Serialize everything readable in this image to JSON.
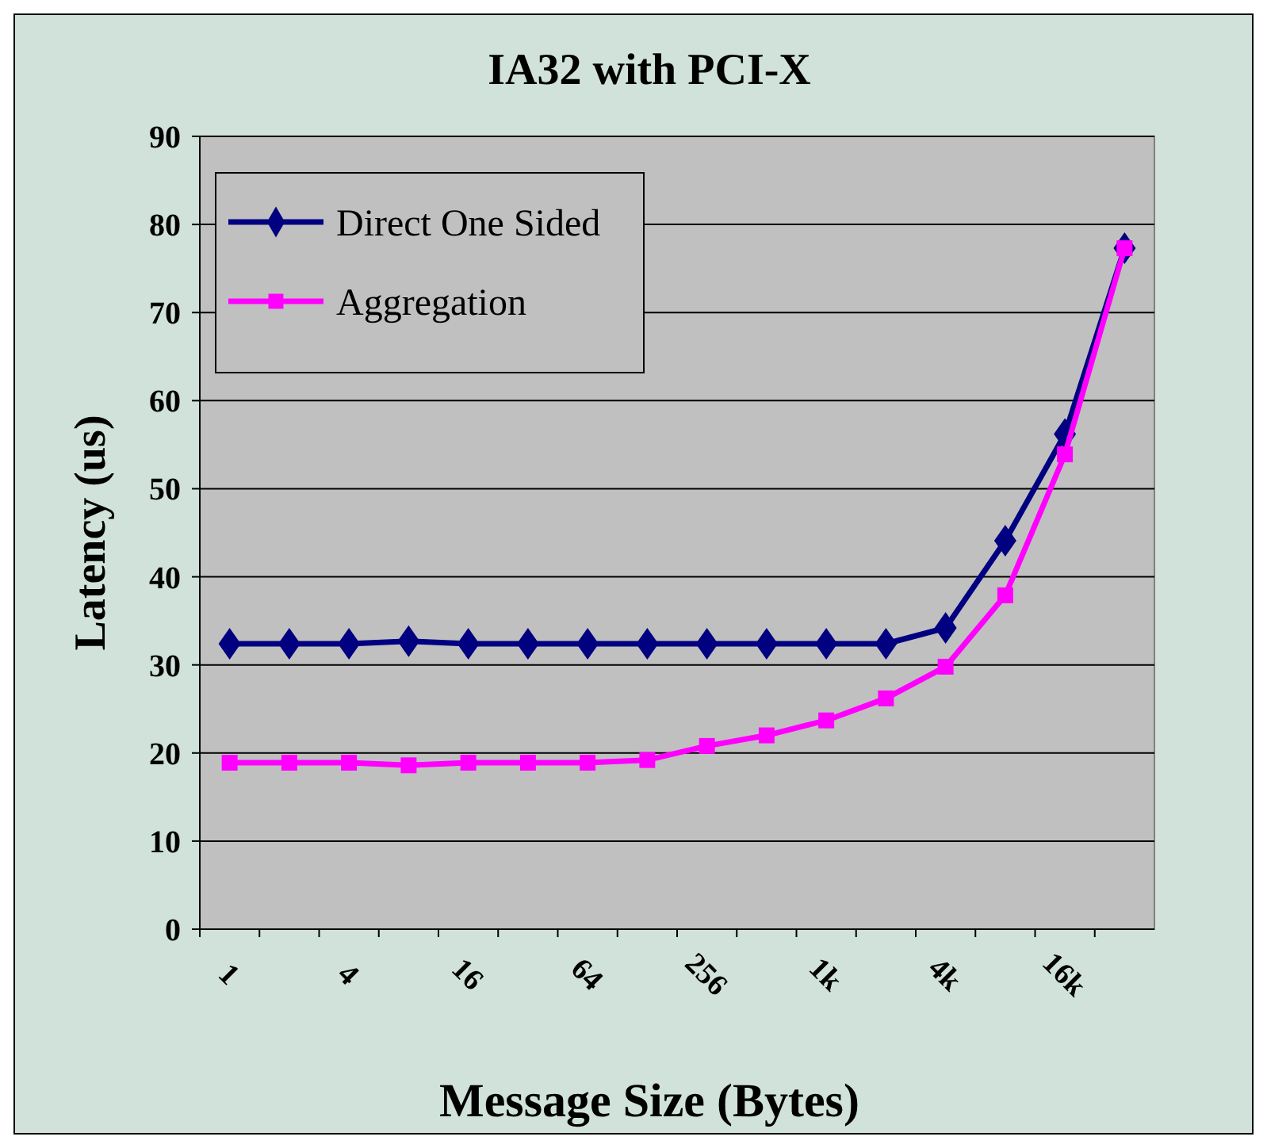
{
  "chart_data": {
    "type": "line",
    "title": "IA32 with PCI-X",
    "xlabel": "Message Size (Bytes)",
    "ylabel": "Latency (us)",
    "categories": [
      "1",
      null,
      "4",
      null,
      "16",
      null,
      "64",
      null,
      "256",
      null,
      "1k",
      null,
      "4k",
      null,
      "16k",
      null
    ],
    "series": [
      {
        "name": "Direct One Sided",
        "color": "#000080",
        "marker": "diamond",
        "values": [
          32.4,
          32.4,
          32.4,
          32.7,
          32.4,
          32.4,
          32.4,
          32.4,
          32.4,
          32.4,
          32.4,
          32.4,
          34.2,
          44.1,
          56.2,
          77.3
        ]
      },
      {
        "name": "Aggregation",
        "color": "#ff00ff",
        "marker": "square",
        "values": [
          18.9,
          18.9,
          18.9,
          18.6,
          18.9,
          18.9,
          18.9,
          19.2,
          20.8,
          22.0,
          23.7,
          26.2,
          29.8,
          37.9,
          53.9,
          77.3
        ]
      }
    ],
    "ylim": [
      0,
      90
    ],
    "yticks": [
      0,
      10,
      20,
      30,
      40,
      50,
      60,
      70,
      80,
      90
    ],
    "grid": "y",
    "legend": "top left"
  }
}
